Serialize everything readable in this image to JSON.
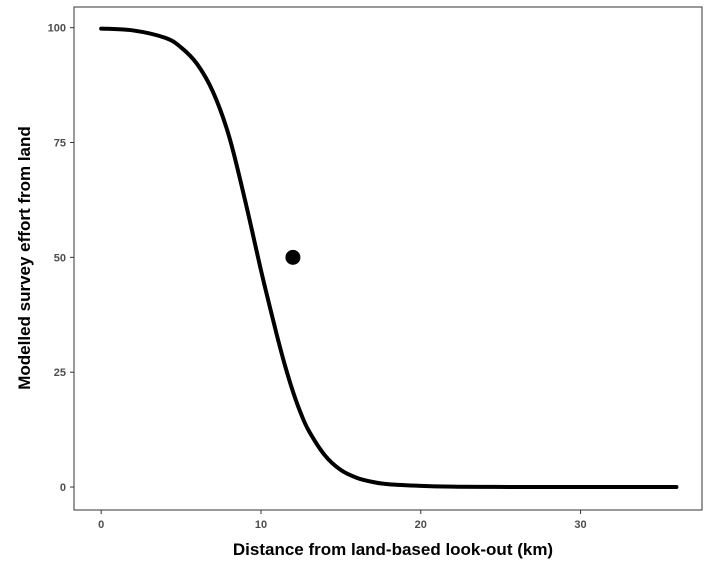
{
  "chart_data": {
    "type": "line",
    "title": "",
    "xlabel": "Distance from land-based look-out (km)",
    "ylabel": "Modelled survey effort from land",
    "xlim": [
      -1.7,
      37.6
    ],
    "ylim": [
      -5,
      104.5
    ],
    "x_ticks": [
      0,
      10,
      20,
      30
    ],
    "y_ticks": [
      0,
      25,
      50,
      75,
      100
    ],
    "x_tick_labels": [
      "0",
      "10",
      "20",
      "30"
    ],
    "y_tick_labels": [
      "0",
      "25",
      "50",
      "75",
      "100"
    ],
    "grid": false,
    "legend": "none",
    "curve": {
      "x": [
        0,
        2,
        4,
        5,
        6,
        7,
        8,
        9,
        10,
        10.5,
        11,
        11.5,
        12,
        12.5,
        13,
        14,
        15,
        16,
        17,
        18,
        20,
        22,
        24,
        26,
        30,
        36
      ],
      "y": [
        99.8,
        99.4,
        97.8,
        95.7,
        92.1,
        86.0,
        76.4,
        62.5,
        47.2,
        40.0,
        33.0,
        26.5,
        20.8,
        16.0,
        12.2,
        6.9,
        3.7,
        2.0,
        1.1,
        0.6,
        0.25,
        0.08,
        0.03,
        0.01,
        0,
        0
      ]
    },
    "highlight_point": {
      "x": 12.0,
      "y": 50
    },
    "colors": {
      "line": "#000000",
      "point": "#000000",
      "axis": "#333333",
      "tick_label": "#4d4d4d"
    }
  }
}
